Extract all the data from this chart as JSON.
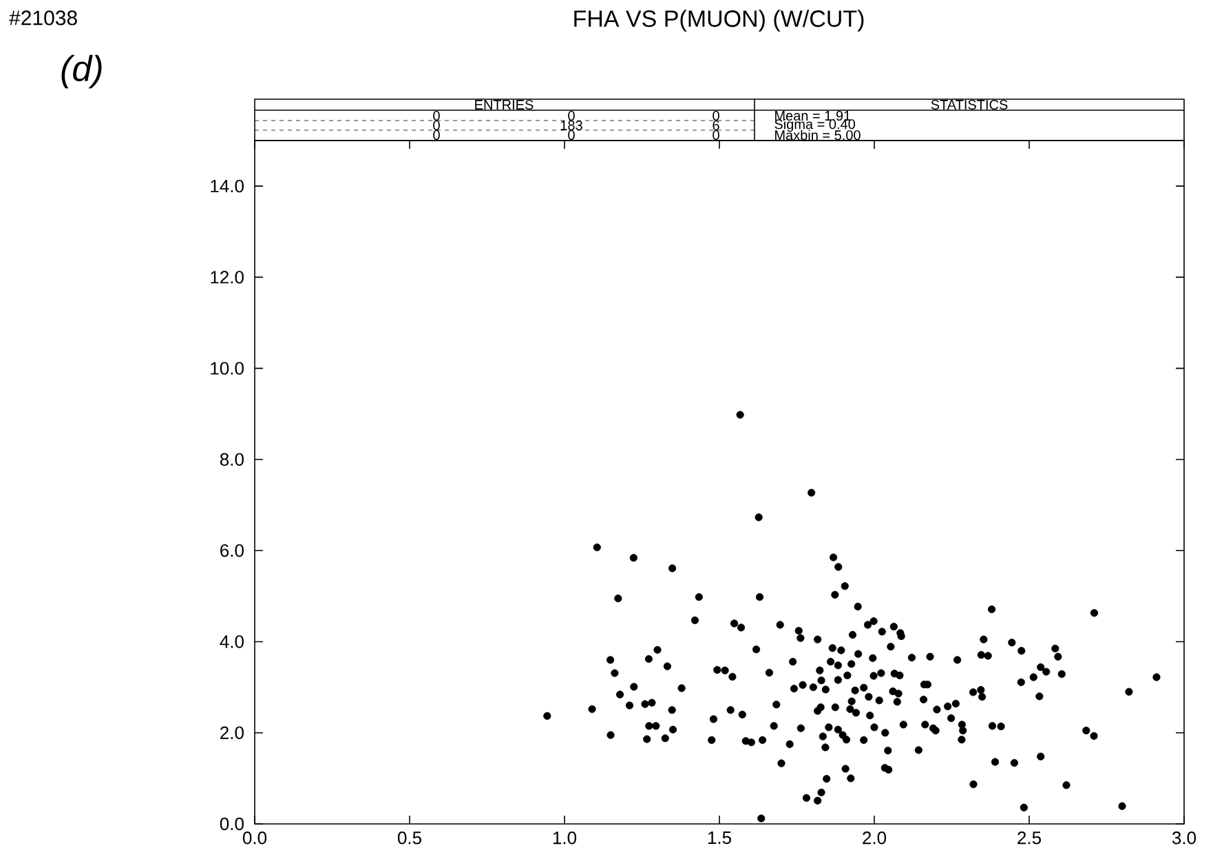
{
  "chart_data": {
    "type": "scatter",
    "title": "FHA VS P(MUON) (W/CUT)",
    "annotations": [
      "#21038",
      "(d)",
      "ENTRIES",
      "STATISTICS",
      "0",
      "0",
      "0",
      "0",
      "183",
      "6",
      "0",
      "0",
      "0",
      "Mean = 1.91",
      "Sigma = 0.40",
      "Maxbin = 5.00"
    ],
    "xlim": [
      0,
      3
    ],
    "ylim": [
      0,
      15
    ],
    "xticks": [
      {
        "value": 0,
        "label": "0.0"
      },
      {
        "value": 0.5,
        "label": "0.5"
      },
      {
        "value": 1,
        "label": "1.0"
      },
      {
        "value": 1.5,
        "label": "1.5"
      },
      {
        "value": 2,
        "label": "2.0"
      },
      {
        "value": 2.5,
        "label": "2.5"
      },
      {
        "value": 3,
        "label": "3.0"
      }
    ],
    "yticks": [
      {
        "value": 0,
        "label": "0.0"
      },
      {
        "value": 2,
        "label": "2.0"
      },
      {
        "value": 4,
        "label": "4.0"
      },
      {
        "value": 6,
        "label": "6.0"
      },
      {
        "value": 8,
        "label": "8.0"
      },
      {
        "value": 10,
        "label": "10.0"
      },
      {
        "value": 12,
        "label": "12.0"
      },
      {
        "value": 14,
        "label": "14.0"
      }
    ],
    "marker": "circle",
    "color": "#000000",
    "x": [
      1.567,
      1.797,
      1.627,
      1.105,
      1.223,
      1.348,
      1.868,
      1.884,
      1.905,
      1.873,
      1.173,
      1.434,
      1.63,
      1.947,
      1.421,
      1.548,
      1.57,
      1.696,
      1.756,
      1.762,
      1.817,
      1.979,
      1.998,
      1.93,
      1.619,
      1.865,
      1.893,
      1.948,
      1.995,
      1.148,
      1.272,
      1.3,
      1.162,
      1.332,
      1.737,
      1.859,
      1.883,
      1.926,
      1.824,
      1.493,
      1.518,
      1.542,
      1.661,
      1.998,
      1.883,
      1.913,
      1.829,
      1.803,
      1.769,
      1.741,
      1.843,
      1.938,
      1.966,
      1.982,
      1.378,
      1.224,
      1.179,
      1.21,
      1.26,
      1.282,
      0.944,
      1.089,
      1.347,
      1.536,
      1.574,
      1.684,
      1.817,
      1.827,
      1.874,
      1.922,
      1.941,
      1.986,
      1.149,
      1.273,
      1.295,
      1.35,
      1.266,
      1.325,
      1.481,
      1.475,
      1.585,
      1.603,
      1.639,
      1.676,
      1.763,
      1.727,
      1.853,
      1.883,
      1.898,
      1.91,
      1.834,
      1.842,
      1.966,
      2.0,
      1.7,
      1.907,
      1.924,
      1.846,
      1.829,
      1.781,
      1.817,
      1.635,
      1.927,
      2.025,
      2.063,
      2.084,
      2.087,
      2.053,
      2.121,
      2.18,
      2.268,
      2.022,
      2.065,
      2.082,
      2.06,
      2.078,
      2.074,
      2.016,
      2.161,
      2.172,
      2.159,
      2.202,
      2.237,
      2.263,
      2.248,
      2.283,
      2.286,
      2.282,
      2.164,
      2.19,
      2.198,
      2.094,
      2.035,
      2.044,
      2.034,
      2.046,
      2.143,
      2.319,
      2.344,
      2.348,
      2.353,
      2.345,
      2.367,
      2.379,
      2.381,
      2.409,
      2.39,
      2.452,
      2.32,
      2.444,
      2.475,
      2.474,
      2.514,
      2.533,
      2.537,
      2.555,
      2.584,
      2.593,
      2.605,
      2.537,
      2.483,
      2.62,
      2.684,
      2.709,
      2.71,
      2.8,
      2.822,
      2.911
    ],
    "values": [
      8.98,
      7.27,
      6.73,
      6.07,
      5.84,
      5.61,
      5.85,
      5.64,
      5.22,
      5.03,
      4.95,
      4.98,
      4.98,
      4.77,
      4.47,
      4.4,
      4.31,
      4.37,
      4.24,
      4.08,
      4.05,
      4.37,
      4.45,
      4.15,
      3.83,
      3.86,
      3.81,
      3.73,
      3.64,
      3.6,
      3.62,
      3.82,
      3.31,
      3.46,
      3.56,
      3.56,
      3.48,
      3.51,
      3.37,
      3.38,
      3.37,
      3.23,
      3.32,
      3.25,
      3.16,
      3.26,
      3.15,
      3.0,
      3.05,
      2.97,
      2.95,
      2.93,
      2.99,
      2.79,
      2.98,
      3.01,
      2.84,
      2.6,
      2.63,
      2.66,
      2.37,
      2.52,
      2.5,
      2.5,
      2.4,
      2.62,
      2.48,
      2.56,
      2.56,
      2.52,
      2.44,
      2.38,
      1.95,
      2.15,
      2.15,
      2.07,
      1.86,
      1.88,
      2.3,
      1.84,
      1.82,
      1.79,
      1.84,
      2.15,
      2.1,
      1.75,
      2.12,
      2.07,
      1.95,
      1.85,
      1.92,
      1.68,
      1.84,
      2.12,
      1.33,
      1.21,
      1.0,
      0.99,
      0.69,
      0.57,
      0.51,
      0.12,
      2.69,
      4.22,
      4.33,
      4.19,
      4.12,
      3.89,
      3.65,
      3.67,
      3.6,
      3.31,
      3.3,
      3.26,
      2.91,
      2.86,
      2.68,
      2.71,
      3.06,
      3.06,
      2.73,
      2.51,
      2.58,
      2.64,
      2.32,
      2.18,
      2.05,
      1.85,
      2.18,
      2.1,
      2.05,
      2.18,
      2.0,
      1.61,
      1.23,
      1.19,
      1.62,
      2.89,
      2.94,
      2.79,
      4.05,
      3.71,
      3.69,
      4.71,
      2.15,
      2.14,
      1.36,
      1.34,
      0.87,
      3.98,
      3.8,
      3.11,
      3.22,
      2.8,
      3.44,
      3.34,
      3.85,
      3.67,
      3.29,
      1.48,
      0.36,
      0.85,
      2.05,
      1.93,
      4.63,
      0.39,
      2.9,
      3.22
    ]
  }
}
